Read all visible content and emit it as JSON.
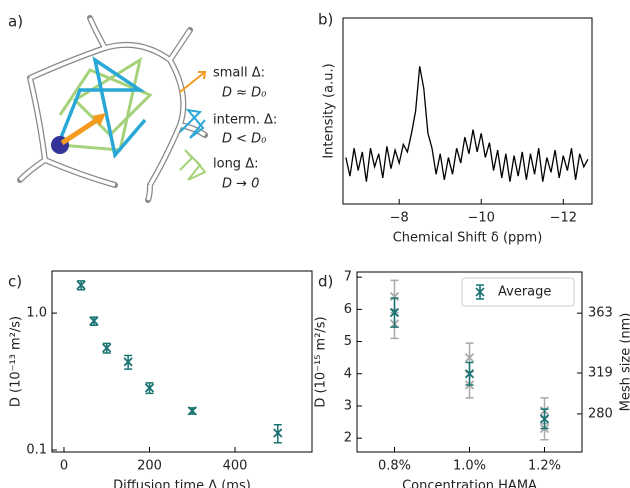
{
  "panel_labels": [
    "a)",
    "b)",
    "c)",
    "d)"
  ],
  "diagram": {
    "legend": [
      {
        "title": "small Δ:",
        "text": "D ≈ D₀"
      },
      {
        "title": "interm. Δ:",
        "text": "D < D₀"
      },
      {
        "title": "long Δ:",
        "text": "D → 0"
      }
    ]
  },
  "chart_data": [
    {
      "type": "line",
      "xlabel": "Chemical Shift δ (ppm)",
      "ylabel": "Intensity (a.u.)",
      "xlim": [
        -6.63,
        -12.7
      ],
      "xticks": [
        {
          "value": -8,
          "label": "−8"
        },
        {
          "value": -10,
          "label": "−10"
        },
        {
          "value": -12,
          "label": "−12"
        }
      ],
      "ylim": [
        0,
        1
      ],
      "color": "#000000",
      "x": [
        -6.7,
        -6.8,
        -6.9,
        -7.0,
        -7.1,
        -7.2,
        -7.3,
        -7.4,
        -7.5,
        -7.6,
        -7.7,
        -7.8,
        -7.9,
        -8.0,
        -8.1,
        -8.2,
        -8.3,
        -8.4,
        -8.5,
        -8.6,
        -8.7,
        -8.8,
        -8.9,
        -9.0,
        -9.1,
        -9.2,
        -9.3,
        -9.4,
        -9.5,
        -9.6,
        -9.7,
        -9.8,
        -9.9,
        -10.0,
        -10.1,
        -10.2,
        -10.3,
        -10.4,
        -10.5,
        -10.6,
        -10.7,
        -10.8,
        -10.9,
        -11.0,
        -11.1,
        -11.2,
        -11.3,
        -11.4,
        -11.5,
        -11.6,
        -11.7,
        -11.8,
        -11.9,
        -12.0,
        -12.1,
        -12.2,
        -12.3,
        -12.4,
        -12.5,
        -12.6
      ],
      "values": [
        0.25,
        0.15,
        0.3,
        0.18,
        0.28,
        0.12,
        0.3,
        0.2,
        0.27,
        0.14,
        0.31,
        0.19,
        0.29,
        0.22,
        0.32,
        0.28,
        0.38,
        0.5,
        0.74,
        0.62,
        0.38,
        0.3,
        0.16,
        0.27,
        0.13,
        0.25,
        0.16,
        0.3,
        0.22,
        0.36,
        0.27,
        0.4,
        0.28,
        0.38,
        0.25,
        0.33,
        0.18,
        0.29,
        0.14,
        0.27,
        0.12,
        0.26,
        0.15,
        0.28,
        0.13,
        0.27,
        0.16,
        0.3,
        0.12,
        0.25,
        0.17,
        0.29,
        0.14,
        0.26,
        0.18,
        0.3,
        0.13,
        0.27,
        0.2,
        0.24
      ]
    },
    {
      "type": "errorbar",
      "xlabel": "Diffusion time Δ (ms)",
      "ylabel": "D (10⁻¹³ m²/s)",
      "xlim": [
        -28,
        580
      ],
      "xticks": [
        0,
        200,
        400
      ],
      "ylim": [
        0.0967,
        2.03
      ],
      "yscale": "log",
      "yticks": [
        0.1,
        {
          "value": 1,
          "label": "1.0"
        }
      ],
      "x": [
        40,
        70,
        100,
        150,
        200,
        300,
        500
      ],
      "series": [
        {
          "color": "#1a7373",
          "values": [
            1.6,
            0.875,
            0.556,
            0.44,
            0.284,
            0.193,
            0.133
          ],
          "errors": [
            0.12,
            0.06,
            0.045,
            0.05,
            0.025,
            0.01,
            0.02
          ]
        }
      ]
    },
    {
      "type": "errorbar",
      "xlabel": "Concentration HAMA",
      "ylabel": "D (10⁻¹⁵ m²/s)",
      "y2label": "Mesh size (nm)",
      "categories": [
        "0.8%",
        "1.0%",
        "1.2%"
      ],
      "ylim": [
        1.57,
        7.16
      ],
      "yticks": [
        2,
        3,
        4,
        5,
        6,
        7
      ],
      "y2lim": [
        230,
        388
      ],
      "y2scale": "cubic",
      "y2ticks": [
        280,
        319,
        363
      ],
      "legend": "upper right",
      "series": [
        {
          "color": "#a9a9a9",
          "values": [
            6.4,
            4.5,
            2.85
          ],
          "errors": [
            0.5,
            0.45,
            0.4
          ]
        },
        {
          "color": "#a9a9a9",
          "values": [
            5.55,
            3.65,
            2.3
          ],
          "errors": [
            0.45,
            0.4,
            0.35
          ]
        },
        {
          "name": "Average",
          "color": "#1a7373",
          "values": [
            5.9,
            4.0,
            2.6
          ],
          "errors": [
            0.45,
            0.35,
            0.3
          ]
        }
      ]
    }
  ]
}
